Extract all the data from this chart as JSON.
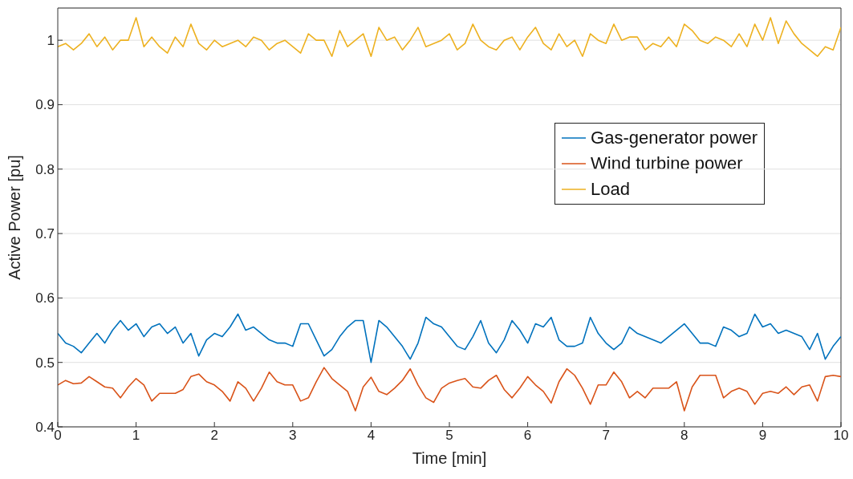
{
  "chart_data": {
    "type": "line",
    "xlabel": "Time [min]",
    "ylabel": "Active Power [pu]",
    "x": [
      0,
      0.1,
      0.2,
      0.3,
      0.4,
      0.5,
      0.6,
      0.7,
      0.8,
      0.9,
      1,
      1.1,
      1.2,
      1.3,
      1.4,
      1.5,
      1.6,
      1.7,
      1.8,
      1.9,
      2,
      2.1,
      2.2,
      2.3,
      2.4,
      2.5,
      2.6,
      2.7,
      2.8,
      2.9,
      3,
      3.1,
      3.2,
      3.3,
      3.4,
      3.5,
      3.6,
      3.7,
      3.8,
      3.9,
      4,
      4.1,
      4.2,
      4.3,
      4.4,
      4.5,
      4.6,
      4.7,
      4.8,
      4.9,
      5,
      5.1,
      5.2,
      5.3,
      5.4,
      5.5,
      5.6,
      5.7,
      5.8,
      5.9,
      6,
      6.1,
      6.2,
      6.3,
      6.4,
      6.5,
      6.6,
      6.7,
      6.8,
      6.9,
      7,
      7.1,
      7.2,
      7.3,
      7.4,
      7.5,
      7.6,
      7.7,
      7.8,
      7.9,
      8,
      8.1,
      8.2,
      8.3,
      8.4,
      8.5,
      8.6,
      8.7,
      8.8,
      8.9,
      9,
      9.1,
      9.2,
      9.3,
      9.4,
      9.5,
      9.6,
      9.7,
      9.8,
      9.9,
      10
    ],
    "series": [
      {
        "name": "Gas-generator power",
        "color": "#0072bd",
        "values": [
          0.545,
          0.53,
          0.525,
          0.515,
          0.53,
          0.545,
          0.53,
          0.55,
          0.565,
          0.55,
          0.56,
          0.54,
          0.555,
          0.56,
          0.545,
          0.555,
          0.53,
          0.545,
          0.51,
          0.535,
          0.545,
          0.54,
          0.555,
          0.575,
          0.55,
          0.555,
          0.545,
          0.535,
          0.53,
          0.53,
          0.525,
          0.56,
          0.56,
          0.535,
          0.51,
          0.52,
          0.54,
          0.555,
          0.565,
          0.565,
          0.5,
          0.565,
          0.555,
          0.54,
          0.525,
          0.505,
          0.53,
          0.57,
          0.56,
          0.555,
          0.54,
          0.525,
          0.52,
          0.54,
          0.565,
          0.53,
          0.515,
          0.535,
          0.565,
          0.55,
          0.53,
          0.56,
          0.555,
          0.57,
          0.535,
          0.525,
          0.525,
          0.53,
          0.57,
          0.545,
          0.53,
          0.52,
          0.53,
          0.555,
          0.545,
          0.54,
          0.535,
          0.53,
          0.54,
          0.55,
          0.56,
          0.545,
          0.53,
          0.53,
          0.525,
          0.555,
          0.55,
          0.54,
          0.545,
          0.575,
          0.555,
          0.56,
          0.545,
          0.55,
          0.545,
          0.54,
          0.52,
          0.545,
          0.505,
          0.525,
          0.54
        ]
      },
      {
        "name": "Wind turbine power",
        "color": "#d95319",
        "values": [
          0.465,
          0.472,
          0.467,
          0.468,
          0.478,
          0.47,
          0.462,
          0.46,
          0.445,
          0.462,
          0.475,
          0.465,
          0.44,
          0.452,
          0.452,
          0.452,
          0.458,
          0.478,
          0.482,
          0.47,
          0.465,
          0.455,
          0.44,
          0.47,
          0.46,
          0.44,
          0.46,
          0.485,
          0.47,
          0.465,
          0.465,
          0.44,
          0.445,
          0.47,
          0.492,
          0.475,
          0.465,
          0.455,
          0.425,
          0.462,
          0.477,
          0.455,
          0.45,
          0.46,
          0.472,
          0.49,
          0.465,
          0.445,
          0.438,
          0.46,
          0.468,
          0.472,
          0.475,
          0.462,
          0.46,
          0.472,
          0.48,
          0.458,
          0.445,
          0.46,
          0.478,
          0.465,
          0.455,
          0.437,
          0.47,
          0.49,
          0.48,
          0.46,
          0.435,
          0.465,
          0.465,
          0.485,
          0.47,
          0.445,
          0.455,
          0.445,
          0.46,
          0.46,
          0.46,
          0.47,
          0.425,
          0.462,
          0.48,
          0.48,
          0.48,
          0.445,
          0.455,
          0.46,
          0.455,
          0.435,
          0.452,
          0.455,
          0.452,
          0.462,
          0.45,
          0.462,
          0.465,
          0.44,
          0.478,
          0.48,
          0.478
        ]
      },
      {
        "name": "Load",
        "color": "#edb120",
        "values": [
          0.99,
          0.995,
          0.985,
          0.995,
          1.01,
          0.99,
          1.005,
          0.985,
          1,
          1,
          1.035,
          0.99,
          1.005,
          0.99,
          0.98,
          1.005,
          0.99,
          1.025,
          0.995,
          0.985,
          1,
          0.99,
          0.995,
          1,
          0.99,
          1.005,
          1,
          0.985,
          0.995,
          1,
          0.99,
          0.98,
          1.01,
          1,
          1,
          0.975,
          1.015,
          0.99,
          1,
          1.01,
          0.975,
          1.02,
          1,
          1.005,
          0.985,
          1,
          1.02,
          0.99,
          0.995,
          1,
          1.01,
          0.985,
          0.995,
          1.025,
          1,
          0.99,
          0.985,
          1,
          1.005,
          0.985,
          1.005,
          1.02,
          0.995,
          0.985,
          1.01,
          0.99,
          1,
          0.975,
          1.01,
          1,
          0.995,
          1.025,
          1,
          1.005,
          1.005,
          0.985,
          0.995,
          0.99,
          1.005,
          0.99,
          1.025,
          1.015,
          1,
          0.995,
          1.005,
          1,
          0.99,
          1.01,
          0.99,
          1.025,
          1,
          1.035,
          0.995,
          1.03,
          1.01,
          0.995,
          0.985,
          0.975,
          0.99,
          0.985,
          1.02
        ]
      }
    ],
    "xlim": [
      0,
      10
    ],
    "xticks": [
      0,
      1,
      2,
      3,
      4,
      5,
      6,
      7,
      8,
      9,
      10
    ],
    "ylim": [
      0.4,
      1.05
    ],
    "yticks": [
      0.4,
      0.5,
      0.6,
      0.7,
      0.8,
      0.9,
      1
    ],
    "grid": "y",
    "legend": "right",
    "line_style": "solid",
    "marker": "none"
  }
}
